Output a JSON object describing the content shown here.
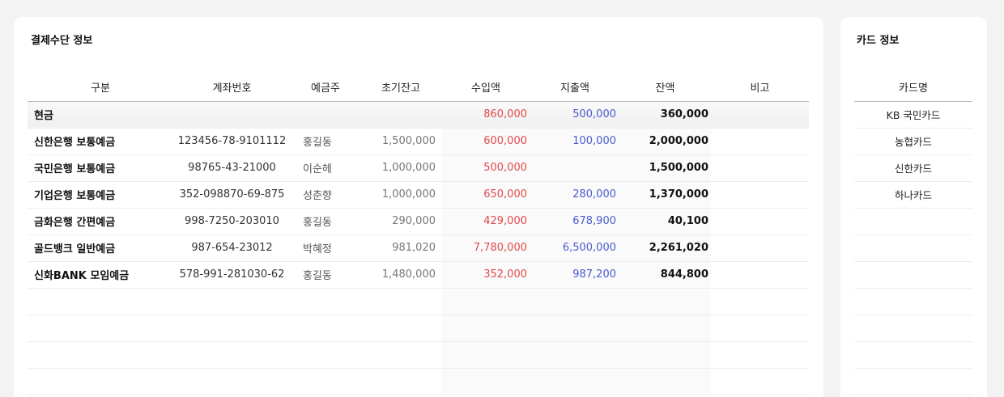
{
  "main_panel": {
    "title": "결제수단 정보",
    "headers": [
      "구분",
      "계좌번호",
      "예금주",
      "초기잔고",
      "수입액",
      "지출액",
      "잔액",
      "비고"
    ],
    "rows": [
      {
        "category": "현금",
        "account": "",
        "owner": "",
        "initial": "",
        "income": "860,000",
        "expense": "500,000",
        "balance": "360,000",
        "note": ""
      },
      {
        "category": "신한은행 보통예금",
        "account": "123456-78-9101112",
        "owner": "홍길동",
        "initial": "1,500,000",
        "income": "600,000",
        "expense": "100,000",
        "balance": "2,000,000",
        "note": ""
      },
      {
        "category": "국민은행 보통예금",
        "account": "98765-43-21000",
        "owner": "이순헤",
        "initial": "1,000,000",
        "income": "500,000",
        "expense": "",
        "balance": "1,500,000",
        "note": ""
      },
      {
        "category": "기업은행 보통예금",
        "account": "352-098870-69-875",
        "owner": "성춘향",
        "initial": "1,000,000",
        "income": "650,000",
        "expense": "280,000",
        "balance": "1,370,000",
        "note": ""
      },
      {
        "category": "금화은행 간편예금",
        "account": "998-7250-203010",
        "owner": "홍길동",
        "initial": "290,000",
        "income": "429,000",
        "expense": "678,900",
        "balance": "40,100",
        "note": ""
      },
      {
        "category": "골드뱅크 일반예금",
        "account": "987-654-23012",
        "owner": "박혜정",
        "initial": "981,020",
        "income": "7,780,000",
        "expense": "6,500,000",
        "balance": "2,261,020",
        "note": ""
      },
      {
        "category": "신화BANK 모임예금",
        "account": "578-991-281030-62",
        "owner": "홍길동",
        "initial": "1,480,000",
        "income": "352,000",
        "expense": "987,200",
        "balance": "844,800",
        "note": ""
      }
    ]
  },
  "card_panel": {
    "title": "카드 정보",
    "header": "카드명",
    "cards": [
      "KB 국민카드",
      "농협카드",
      "신한카드",
      "하나카드"
    ]
  }
}
